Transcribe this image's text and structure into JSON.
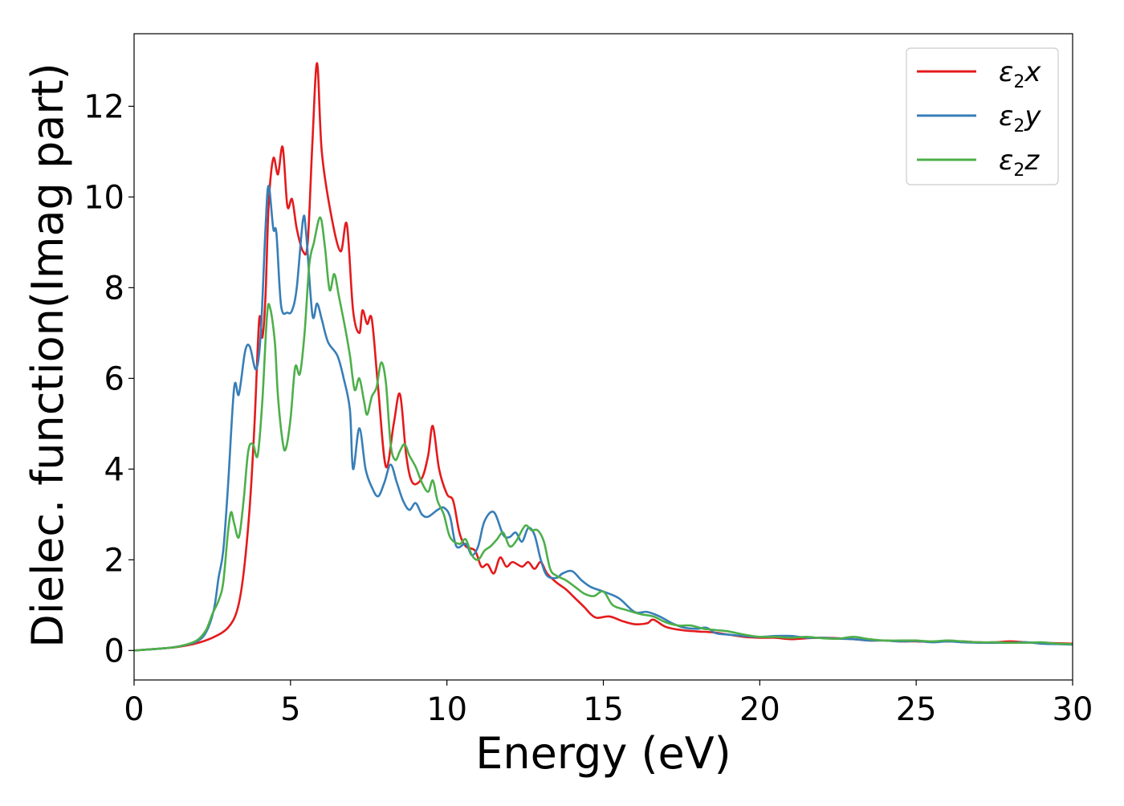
{
  "chart_data": {
    "type": "line",
    "xlabel": "Energy (eV)",
    "ylabel": "Dielec. function(Imag part)",
    "xlim": [
      0,
      30
    ],
    "ylim": [
      -0.65,
      13.6
    ],
    "xticks": [
      0,
      5,
      10,
      15,
      20,
      25,
      30
    ],
    "yticks": [
      0,
      2,
      4,
      6,
      8,
      10,
      12
    ],
    "grid": false,
    "legend_position": "top-right",
    "series": [
      {
        "name": "ε2x",
        "legend_base": "ε",
        "legend_sub": "2",
        "legend_var": "x",
        "color": "#e41a1c",
        "points": [
          [
            0,
            0
          ],
          [
            1,
            0.05
          ],
          [
            1.5,
            0.09
          ],
          [
            2,
            0.16
          ],
          [
            2.5,
            0.28
          ],
          [
            3,
            0.5
          ],
          [
            3.3,
            0.9
          ],
          [
            3.5,
            1.7
          ],
          [
            3.7,
            3.2
          ],
          [
            3.85,
            5
          ],
          [
            4.0,
            7.3
          ],
          [
            4.1,
            6.9
          ],
          [
            4.2,
            7.8
          ],
          [
            4.3,
            9.8
          ],
          [
            4.45,
            10.85
          ],
          [
            4.6,
            10.5
          ],
          [
            4.75,
            11.1
          ],
          [
            4.9,
            9.8
          ],
          [
            5.05,
            9.95
          ],
          [
            5.2,
            9.3
          ],
          [
            5.4,
            8.8
          ],
          [
            5.55,
            9.0
          ],
          [
            5.7,
            11.2
          ],
          [
            5.85,
            12.95
          ],
          [
            6.0,
            11
          ],
          [
            6.3,
            9.6
          ],
          [
            6.6,
            8.8
          ],
          [
            6.8,
            9.4
          ],
          [
            7.0,
            7.5
          ],
          [
            7.2,
            7.0
          ],
          [
            7.3,
            7.5
          ],
          [
            7.45,
            7.2
          ],
          [
            7.6,
            7.3
          ],
          [
            7.8,
            5.8
          ],
          [
            8.05,
            4.05
          ],
          [
            8.3,
            5.0
          ],
          [
            8.5,
            5.65
          ],
          [
            8.7,
            4.3
          ],
          [
            8.9,
            3.7
          ],
          [
            9.2,
            3.8
          ],
          [
            9.4,
            4.3
          ],
          [
            9.55,
            4.95
          ],
          [
            9.75,
            4.0
          ],
          [
            10.0,
            3.45
          ],
          [
            10.2,
            3.3
          ],
          [
            10.4,
            2.6
          ],
          [
            10.6,
            2.3
          ],
          [
            10.9,
            2.2
          ],
          [
            11.1,
            1.85
          ],
          [
            11.3,
            1.9
          ],
          [
            11.5,
            1.7
          ],
          [
            11.7,
            2.05
          ],
          [
            11.9,
            1.85
          ],
          [
            12.1,
            1.95
          ],
          [
            12.4,
            1.85
          ],
          [
            12.6,
            1.95
          ],
          [
            12.8,
            1.8
          ],
          [
            13.0,
            1.95
          ],
          [
            13.2,
            1.7
          ],
          [
            13.5,
            1.5
          ],
          [
            13.8,
            1.35
          ],
          [
            14.1,
            1.15
          ],
          [
            14.4,
            0.95
          ],
          [
            14.6,
            0.8
          ],
          [
            14.8,
            0.72
          ],
          [
            15.2,
            0.75
          ],
          [
            15.6,
            0.65
          ],
          [
            16.0,
            0.58
          ],
          [
            16.4,
            0.6
          ],
          [
            16.6,
            0.68
          ],
          [
            17.0,
            0.52
          ],
          [
            17.5,
            0.45
          ],
          [
            18.0,
            0.42
          ],
          [
            18.5,
            0.4
          ],
          [
            19.0,
            0.35
          ],
          [
            19.5,
            0.3
          ],
          [
            20.0,
            0.28
          ],
          [
            20.5,
            0.28
          ],
          [
            21.0,
            0.25
          ],
          [
            21.5,
            0.27
          ],
          [
            22.0,
            0.28
          ],
          [
            22.5,
            0.27
          ],
          [
            23.0,
            0.25
          ],
          [
            23.5,
            0.22
          ],
          [
            24.0,
            0.22
          ],
          [
            24.5,
            0.2
          ],
          [
            25.0,
            0.2
          ],
          [
            25.5,
            0.19
          ],
          [
            26.0,
            0.2
          ],
          [
            26.5,
            0.2
          ],
          [
            27.0,
            0.18
          ],
          [
            27.5,
            0.18
          ],
          [
            28.0,
            0.2
          ],
          [
            28.5,
            0.18
          ],
          [
            29.0,
            0.17
          ],
          [
            29.5,
            0.16
          ],
          [
            30.0,
            0.15
          ]
        ]
      },
      {
        "name": "ε2y",
        "legend_base": "ε",
        "legend_sub": "2",
        "legend_var": "y",
        "color": "#377eb8",
        "points": [
          [
            0,
            0
          ],
          [
            1,
            0.05
          ],
          [
            1.5,
            0.1
          ],
          [
            2,
            0.2
          ],
          [
            2.3,
            0.4
          ],
          [
            2.55,
            0.9
          ],
          [
            2.7,
            1.6
          ],
          [
            2.85,
            2.2
          ],
          [
            3.0,
            3.6
          ],
          [
            3.2,
            5.8
          ],
          [
            3.35,
            5.65
          ],
          [
            3.55,
            6.6
          ],
          [
            3.7,
            6.7
          ],
          [
            3.9,
            6.2
          ],
          [
            4.05,
            7.0
          ],
          [
            4.2,
            9.3
          ],
          [
            4.3,
            10.25
          ],
          [
            4.45,
            9.3
          ],
          [
            4.55,
            9.2
          ],
          [
            4.7,
            7.6
          ],
          [
            4.9,
            7.45
          ],
          [
            5.05,
            7.5
          ],
          [
            5.2,
            8.0
          ],
          [
            5.4,
            9.5
          ],
          [
            5.5,
            9.2
          ],
          [
            5.7,
            7.4
          ],
          [
            5.85,
            7.65
          ],
          [
            6.0,
            7.3
          ],
          [
            6.2,
            6.8
          ],
          [
            6.5,
            6.5
          ],
          [
            6.7,
            6.0
          ],
          [
            6.9,
            5.3
          ],
          [
            7.0,
            4.0
          ],
          [
            7.2,
            4.9
          ],
          [
            7.4,
            4.0
          ],
          [
            7.6,
            3.6
          ],
          [
            7.8,
            3.4
          ],
          [
            8.0,
            3.7
          ],
          [
            8.2,
            4.1
          ],
          [
            8.4,
            3.7
          ],
          [
            8.6,
            3.3
          ],
          [
            8.8,
            3.1
          ],
          [
            9.0,
            3.25
          ],
          [
            9.2,
            3.0
          ],
          [
            9.4,
            2.95
          ],
          [
            9.7,
            3.1
          ],
          [
            9.9,
            3.15
          ],
          [
            10.1,
            2.95
          ],
          [
            10.3,
            2.3
          ],
          [
            10.6,
            2.35
          ],
          [
            10.8,
            2.1
          ],
          [
            11.0,
            2.3
          ],
          [
            11.2,
            2.85
          ],
          [
            11.5,
            3.05
          ],
          [
            11.8,
            2.55
          ],
          [
            12.0,
            2.5
          ],
          [
            12.2,
            2.6
          ],
          [
            12.4,
            2.4
          ],
          [
            12.6,
            2.7
          ],
          [
            12.8,
            2.55
          ],
          [
            13.0,
            2.0
          ],
          [
            13.2,
            1.65
          ],
          [
            13.5,
            1.6
          ],
          [
            13.7,
            1.7
          ],
          [
            14.0,
            1.75
          ],
          [
            14.3,
            1.55
          ],
          [
            14.6,
            1.4
          ],
          [
            15.0,
            1.3
          ],
          [
            15.5,
            1.15
          ],
          [
            16.0,
            0.85
          ],
          [
            16.4,
            0.85
          ],
          [
            16.8,
            0.75
          ],
          [
            17.2,
            0.6
          ],
          [
            17.6,
            0.5
          ],
          [
            18.0,
            0.48
          ],
          [
            18.3,
            0.5
          ],
          [
            18.6,
            0.38
          ],
          [
            19.0,
            0.35
          ],
          [
            19.5,
            0.32
          ],
          [
            20.0,
            0.3
          ],
          [
            20.5,
            0.32
          ],
          [
            21.0,
            0.32
          ],
          [
            21.5,
            0.28
          ],
          [
            22.0,
            0.28
          ],
          [
            22.5,
            0.26
          ],
          [
            23.0,
            0.25
          ],
          [
            23.5,
            0.22
          ],
          [
            24.0,
            0.22
          ],
          [
            24.5,
            0.2
          ],
          [
            25.0,
            0.21
          ],
          [
            25.5,
            0.18
          ],
          [
            26.0,
            0.2
          ],
          [
            26.5,
            0.18
          ],
          [
            27.0,
            0.17
          ],
          [
            27.5,
            0.17
          ],
          [
            28.0,
            0.17
          ],
          [
            28.5,
            0.18
          ],
          [
            29.0,
            0.15
          ],
          [
            29.5,
            0.14
          ],
          [
            30.0,
            0.13
          ]
        ]
      },
      {
        "name": "ε2z",
        "legend_base": "ε",
        "legend_sub": "2",
        "legend_var": "z",
        "color": "#4daf4a",
        "points": [
          [
            0,
            0
          ],
          [
            1,
            0.05
          ],
          [
            1.5,
            0.1
          ],
          [
            2,
            0.22
          ],
          [
            2.3,
            0.45
          ],
          [
            2.5,
            0.8
          ],
          [
            2.7,
            1.1
          ],
          [
            2.85,
            1.5
          ],
          [
            3.0,
            2.6
          ],
          [
            3.1,
            3.05
          ],
          [
            3.2,
            2.8
          ],
          [
            3.35,
            2.5
          ],
          [
            3.5,
            3.3
          ],
          [
            3.65,
            4.4
          ],
          [
            3.8,
            4.55
          ],
          [
            3.95,
            4.3
          ],
          [
            4.1,
            5.5
          ],
          [
            4.25,
            7.4
          ],
          [
            4.35,
            7.55
          ],
          [
            4.5,
            6.8
          ],
          [
            4.6,
            5.6
          ],
          [
            4.75,
            4.6
          ],
          [
            4.85,
            4.45
          ],
          [
            5.0,
            5.1
          ],
          [
            5.15,
            6.25
          ],
          [
            5.3,
            6.1
          ],
          [
            5.45,
            7.0
          ],
          [
            5.6,
            8.5
          ],
          [
            5.75,
            9.0
          ],
          [
            5.95,
            9.55
          ],
          [
            6.1,
            8.9
          ],
          [
            6.25,
            7.95
          ],
          [
            6.4,
            8.3
          ],
          [
            6.55,
            7.8
          ],
          [
            6.75,
            7.1
          ],
          [
            6.9,
            6.5
          ],
          [
            7.05,
            5.75
          ],
          [
            7.2,
            6.0
          ],
          [
            7.35,
            5.5
          ],
          [
            7.45,
            5.2
          ],
          [
            7.6,
            5.6
          ],
          [
            7.75,
            5.8
          ],
          [
            7.9,
            6.35
          ],
          [
            8.05,
            5.9
          ],
          [
            8.2,
            4.55
          ],
          [
            8.35,
            4.2
          ],
          [
            8.5,
            4.4
          ],
          [
            8.65,
            4.55
          ],
          [
            8.8,
            4.3
          ],
          [
            9.0,
            4.05
          ],
          [
            9.2,
            3.7
          ],
          [
            9.4,
            3.5
          ],
          [
            9.55,
            3.75
          ],
          [
            9.7,
            3.3
          ],
          [
            9.9,
            3.0
          ],
          [
            10.1,
            2.5
          ],
          [
            10.4,
            2.35
          ],
          [
            10.6,
            2.45
          ],
          [
            10.8,
            2.1
          ],
          [
            11.0,
            2.0
          ],
          [
            11.2,
            2.2
          ],
          [
            11.4,
            2.3
          ],
          [
            11.6,
            2.45
          ],
          [
            11.8,
            2.6
          ],
          [
            12.0,
            2.3
          ],
          [
            12.2,
            2.4
          ],
          [
            12.5,
            2.75
          ],
          [
            12.7,
            2.65
          ],
          [
            12.9,
            2.65
          ],
          [
            13.1,
            2.4
          ],
          [
            13.3,
            1.8
          ],
          [
            13.5,
            1.65
          ],
          [
            13.8,
            1.55
          ],
          [
            14.1,
            1.4
          ],
          [
            14.4,
            1.25
          ],
          [
            14.7,
            1.2
          ],
          [
            15.0,
            1.3
          ],
          [
            15.3,
            1.0
          ],
          [
            15.7,
            0.9
          ],
          [
            16.2,
            0.8
          ],
          [
            16.6,
            0.75
          ],
          [
            17.0,
            0.62
          ],
          [
            17.4,
            0.55
          ],
          [
            17.8,
            0.55
          ],
          [
            18.2,
            0.48
          ],
          [
            18.6,
            0.45
          ],
          [
            19.0,
            0.42
          ],
          [
            19.5,
            0.35
          ],
          [
            20.0,
            0.3
          ],
          [
            20.5,
            0.3
          ],
          [
            21.0,
            0.28
          ],
          [
            21.5,
            0.3
          ],
          [
            22.0,
            0.27
          ],
          [
            22.5,
            0.26
          ],
          [
            23.0,
            0.3
          ],
          [
            23.5,
            0.25
          ],
          [
            24.0,
            0.22
          ],
          [
            24.5,
            0.22
          ],
          [
            25.0,
            0.22
          ],
          [
            25.5,
            0.2
          ],
          [
            26.0,
            0.22
          ],
          [
            26.5,
            0.2
          ],
          [
            27.0,
            0.18
          ],
          [
            27.5,
            0.18
          ],
          [
            28.0,
            0.17
          ],
          [
            28.5,
            0.17
          ],
          [
            29.0,
            0.18
          ],
          [
            29.5,
            0.15
          ],
          [
            30.0,
            0.14
          ]
        ]
      }
    ]
  }
}
